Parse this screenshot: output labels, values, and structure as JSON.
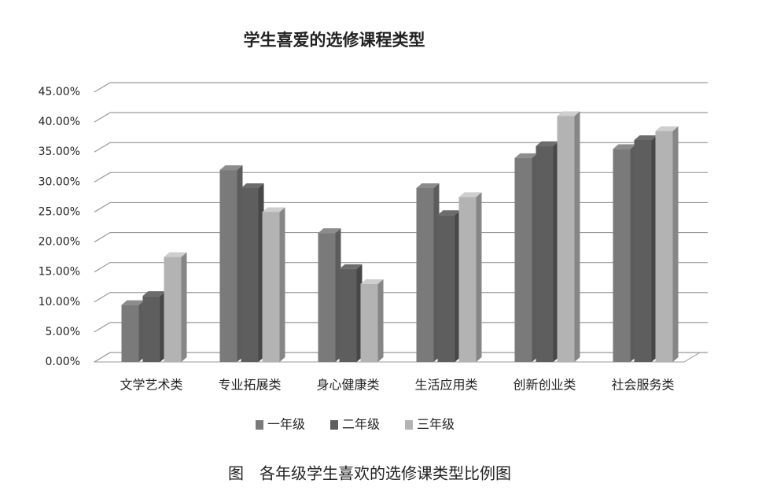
{
  "chart_data": {
    "type": "bar3d",
    "title": "学生喜爱的选修课程类型",
    "categories": [
      "文学艺术类",
      "专业拓展类",
      "身心健康类",
      "生活应用类",
      "创新创业类",
      "社会服务类"
    ],
    "series": [
      {
        "name": "一年级",
        "color": "#7a7a7a",
        "values": [
          9.5,
          32,
          21.5,
          29,
          34,
          35.5
        ]
      },
      {
        "name": "二年级",
        "color": "#5e5e5e",
        "values": [
          11,
          29,
          15.5,
          24.5,
          36,
          37
        ]
      },
      {
        "name": "三年级",
        "color": "#b3b3b3",
        "values": [
          17.5,
          25,
          13,
          27.5,
          41,
          38.5
        ]
      }
    ],
    "ylim": [
      0,
      45
    ],
    "yticks": [
      {
        "value": 0,
        "label": "0.00%"
      },
      {
        "value": 5,
        "label": "5.00%"
      },
      {
        "value": 10,
        "label": "10.00%"
      },
      {
        "value": 15,
        "label": "15.00%"
      },
      {
        "value": 20,
        "label": "20.00%"
      },
      {
        "value": 25,
        "label": "25.00%"
      },
      {
        "value": 30,
        "label": "30.00%"
      },
      {
        "value": 35,
        "label": "35.00%"
      },
      {
        "value": 40,
        "label": "40.00%"
      },
      {
        "value": 45,
        "label": "45.00%"
      }
    ],
    "grid": true,
    "legend": "bottom",
    "caption": "图　各年级学生喜欢的选修课类型比例图"
  }
}
